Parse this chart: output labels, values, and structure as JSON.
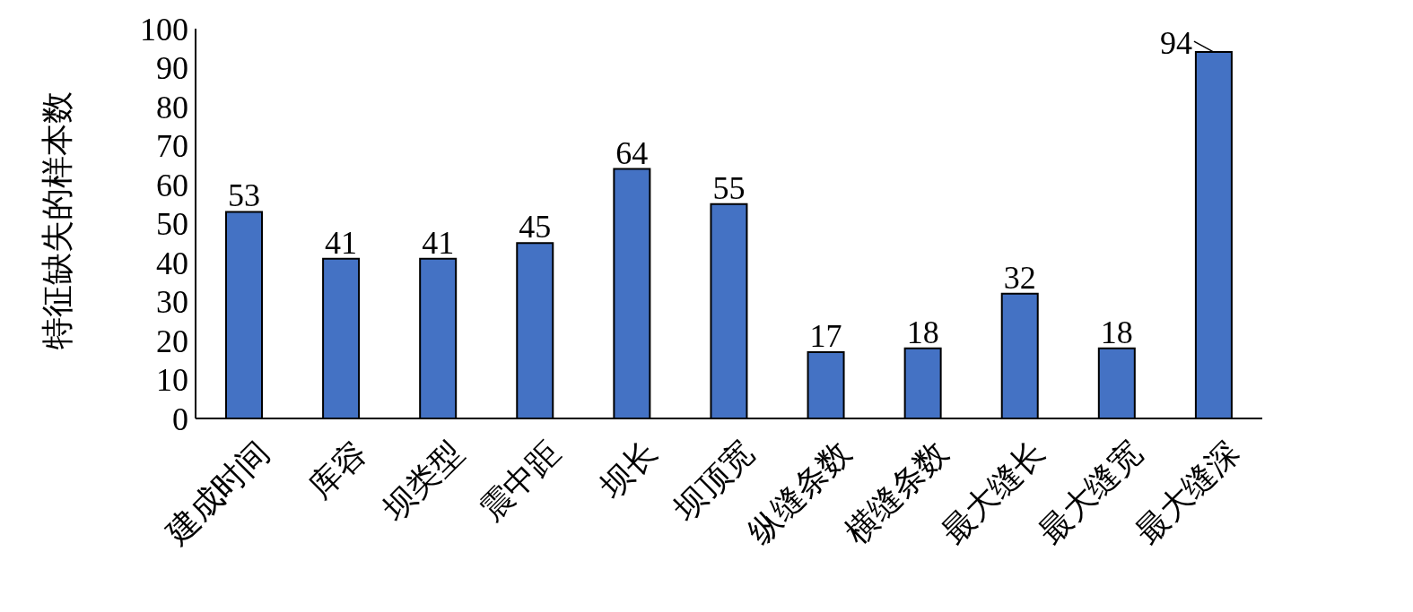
{
  "chart_data": {
    "type": "bar",
    "ylabel": "特征缺失的样本数",
    "categories": [
      "建成时间",
      "库容",
      "坝类型",
      "震中距",
      "坝长",
      "坝顶宽",
      "纵缝条数",
      "横缝条数",
      "最大缝长",
      "最大缝宽",
      "最大缝深"
    ],
    "values": [
      53,
      41,
      41,
      45,
      64,
      55,
      17,
      18,
      32,
      18,
      94
    ],
    "color": "#4472c4",
    "ylim": [
      0,
      100
    ],
    "yticks": [
      0,
      10,
      20,
      30,
      40,
      50,
      60,
      70,
      80,
      90,
      100
    ],
    "grid": false,
    "data_labels": true,
    "legend": false
  }
}
